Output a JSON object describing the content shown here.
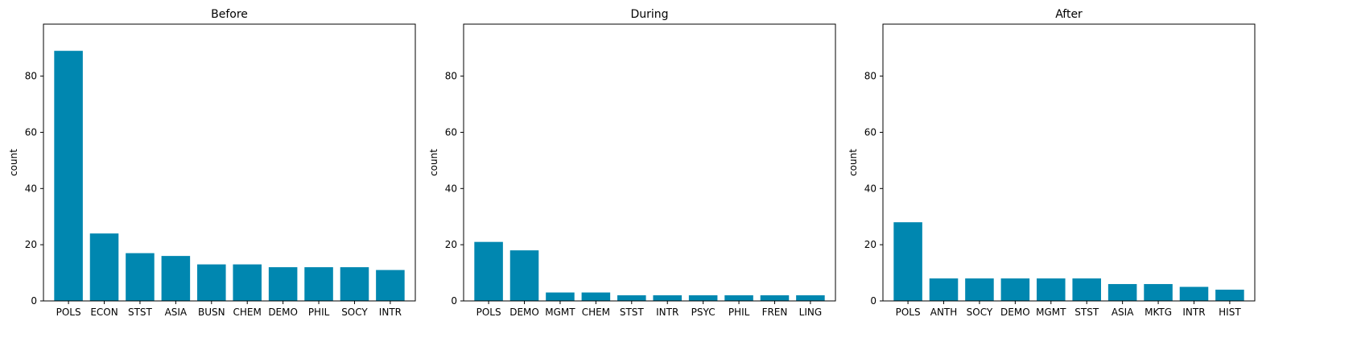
{
  "chart_data": [
    {
      "type": "bar",
      "title": "Before",
      "xlabel": "",
      "ylabel": "count",
      "ylim": [
        0,
        98.5
      ],
      "yticks": [
        0,
        20,
        40,
        60,
        80
      ],
      "color": "#0087b0",
      "categories": [
        "POLS",
        "ECON",
        "STST",
        "ASIA",
        "BUSN",
        "CHEM",
        "DEMO",
        "PHIL",
        "SOCY",
        "INTR"
      ],
      "values": [
        89,
        24,
        17,
        16,
        13,
        13,
        12,
        12,
        12,
        11
      ]
    },
    {
      "type": "bar",
      "title": "During",
      "xlabel": "",
      "ylabel": "count",
      "ylim": [
        0,
        98.5
      ],
      "yticks": [
        0,
        20,
        40,
        60,
        80
      ],
      "color": "#0087b0",
      "categories": [
        "POLS",
        "DEMO",
        "MGMT",
        "CHEM",
        "STST",
        "INTR",
        "PSYC",
        "PHIL",
        "FREN",
        "LING"
      ],
      "values": [
        21,
        18,
        3,
        3,
        2,
        2,
        2,
        2,
        2,
        2
      ]
    },
    {
      "type": "bar",
      "title": "After",
      "xlabel": "",
      "ylabel": "count",
      "ylim": [
        0,
        98.5
      ],
      "yticks": [
        0,
        20,
        40,
        60,
        80
      ],
      "color": "#0087b0",
      "categories": [
        "POLS",
        "ANTH",
        "SOCY",
        "DEMO",
        "MGMT",
        "STST",
        "ASIA",
        "MKTG",
        "INTR",
        "HIST"
      ],
      "values": [
        28,
        8,
        8,
        8,
        8,
        8,
        6,
        6,
        5,
        4
      ]
    }
  ]
}
